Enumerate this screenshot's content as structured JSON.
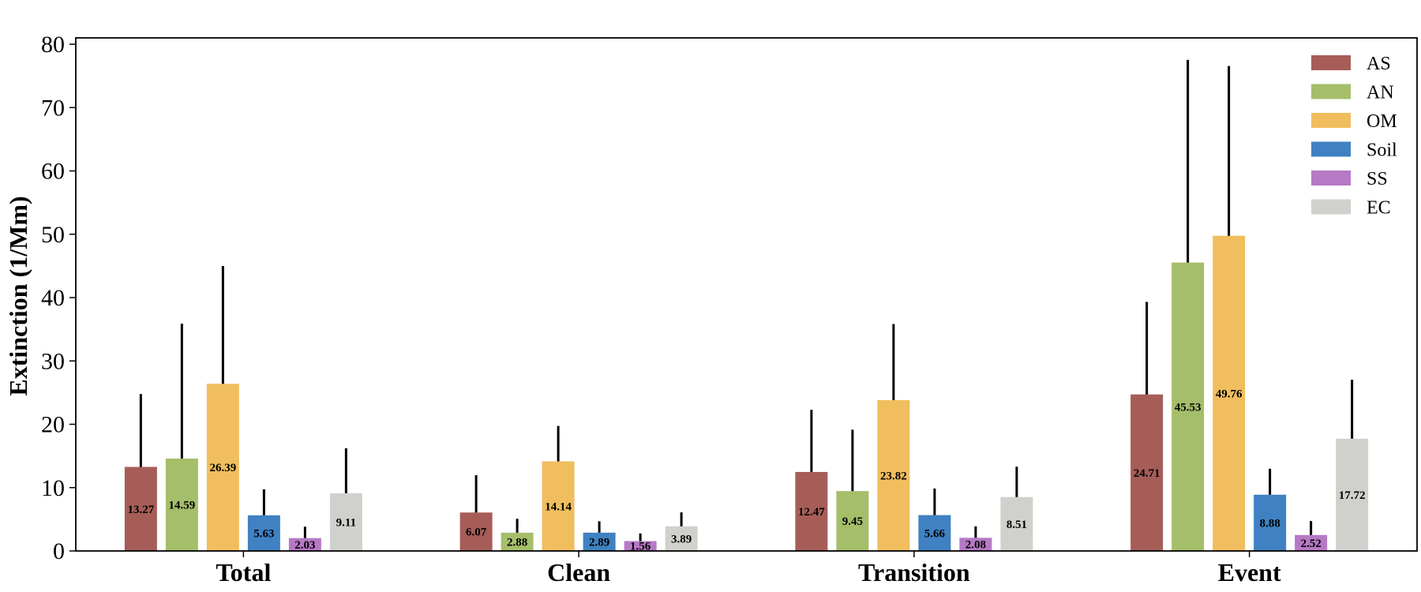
{
  "chart_data": {
    "type": "bar",
    "categories": [
      "Total",
      "Clean",
      "Transition",
      "Event"
    ],
    "ylabel": "Extinction (1/Mm)",
    "xlabel": "",
    "ylim": [
      0,
      81
    ],
    "yticks": [
      0,
      10,
      20,
      30,
      40,
      50,
      60,
      70,
      80
    ],
    "legend_position": "top-right",
    "error_bars": true,
    "series": [
      {
        "name": "AS",
        "color": "#a65d57",
        "values": [
          13.27,
          6.07,
          12.47,
          24.71
        ],
        "errors": [
          11.5,
          5.9,
          9.8,
          14.6
        ]
      },
      {
        "name": "AN",
        "color": "#a5be6a",
        "values": [
          14.59,
          2.88,
          9.45,
          45.53
        ],
        "errors": [
          21.3,
          2.2,
          9.7,
          32.0
        ]
      },
      {
        "name": "OM",
        "color": "#f0be5e",
        "values": [
          26.39,
          14.14,
          23.82,
          49.76
        ],
        "errors": [
          18.6,
          5.6,
          12.0,
          26.8
        ]
      },
      {
        "name": "Soil",
        "color": "#3f81c2",
        "values": [
          5.63,
          2.89,
          5.66,
          8.88
        ],
        "errors": [
          4.1,
          1.8,
          4.2,
          4.1
        ]
      },
      {
        "name": "SS",
        "color": "#b679c5",
        "values": [
          2.03,
          1.56,
          2.08,
          2.52
        ],
        "errors": [
          1.8,
          1.2,
          1.8,
          2.2
        ]
      },
      {
        "name": "EC",
        "color": "#d0d0cc",
        "values": [
          9.11,
          3.89,
          8.51,
          17.72
        ],
        "errors": [
          7.1,
          2.2,
          4.8,
          9.3
        ]
      }
    ]
  }
}
